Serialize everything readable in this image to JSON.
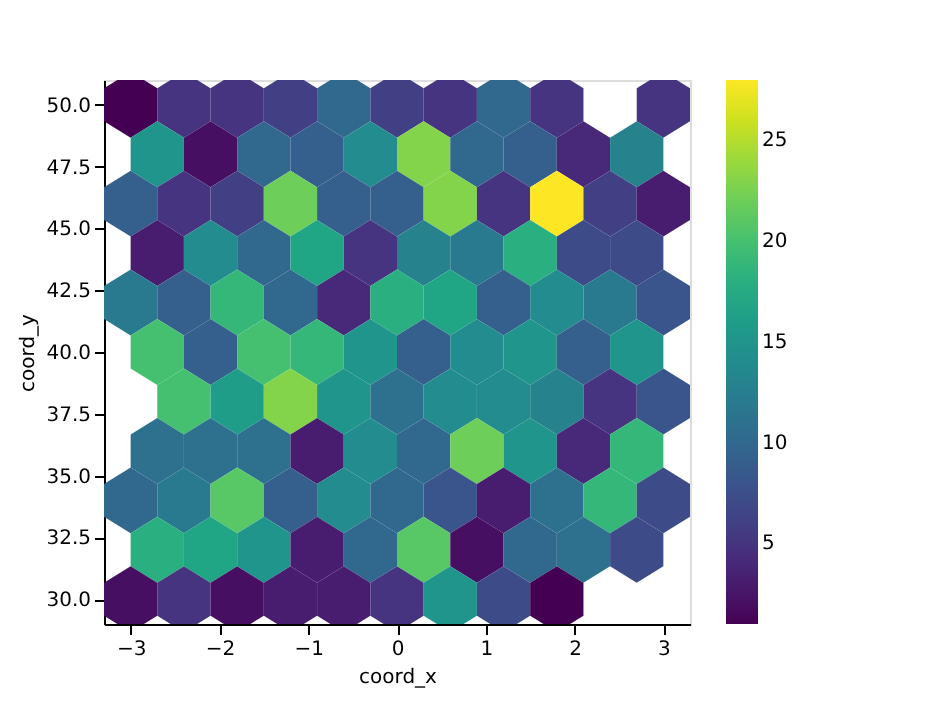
{
  "chart_data": {
    "type": "scatter",
    "xlabel": "coord_x",
    "ylabel": "coord_y",
    "x": [
      -3,
      -2.4,
      -1.8,
      -1.2,
      -0.6,
      0,
      0.6,
      1.2,
      1.8,
      3,
      -2.7,
      -2.1,
      -1.5,
      -0.9,
      -0.3,
      0.3,
      0.9,
      1.5,
      2.1,
      2.7,
      -3,
      -2.4,
      -1.8,
      -1.2,
      -0.6,
      0,
      0.6,
      1.2,
      1.8,
      2.4,
      3,
      -2.7,
      -2.1,
      -1.5,
      -0.9,
      -0.3,
      0.3,
      0.9,
      1.5,
      2.1,
      2.7,
      -3,
      -2.4,
      -1.8,
      -1.2,
      -0.6,
      0,
      0.6,
      1.2,
      1.8,
      2.4,
      3,
      -2.7,
      -2.1,
      -1.5,
      -0.9,
      -0.3,
      0.3,
      0.9,
      1.5,
      2.1,
      2.7,
      -2.4,
      -1.8,
      -1.2,
      -0.6,
      0,
      0.6,
      1.2,
      1.8,
      2.4,
      3,
      -2.7,
      -2.1,
      -1.5,
      -0.9,
      -0.3,
      0.3,
      0.9,
      1.5,
      2.1,
      2.7,
      -3,
      -2.4,
      -1.8,
      -1.2,
      -0.6,
      0,
      0.6,
      1.2,
      1.8,
      2.4,
      3,
      -2.7,
      -2.1,
      -1.5,
      -0.9,
      -0.3,
      0.3,
      0.9,
      1.5,
      2.1,
      2.7,
      -3,
      -2.4,
      -1.8,
      -1.2,
      -0.6,
      0,
      0.6,
      1.2,
      1.8
    ],
    "values": [
      50,
      50,
      50,
      50,
      50,
      50,
      50,
      50,
      50,
      50,
      48,
      48,
      48,
      48,
      48,
      48,
      48,
      48,
      48,
      48,
      46,
      46,
      46,
      46,
      46,
      46,
      46,
      46,
      46,
      46,
      46,
      44,
      44,
      44,
      44,
      44,
      44,
      44,
      44,
      44,
      44,
      42,
      42,
      42,
      42,
      42,
      42,
      42,
      42,
      42,
      42,
      42,
      40,
      40,
      40,
      40,
      40,
      40,
      40,
      40,
      40,
      40,
      38,
      38,
      38,
      38,
      38,
      38,
      38,
      38,
      38,
      38,
      36,
      36,
      36,
      36,
      36,
      36,
      36,
      36,
      36,
      36,
      34,
      34,
      34,
      34,
      34,
      34,
      34,
      34,
      34,
      34,
      34,
      32,
      32,
      32,
      32,
      32,
      32,
      32,
      32,
      32,
      32,
      30,
      30,
      30,
      30,
      30,
      30,
      30,
      30,
      30
    ],
    "cvalues": [
      1,
      5,
      5,
      6,
      10,
      6,
      5,
      10,
      5,
      5,
      15,
      2,
      10,
      9,
      14,
      23,
      10,
      9,
      4,
      13,
      9,
      5,
      6,
      22,
      9,
      9,
      23,
      5,
      28,
      6,
      3,
      3,
      14,
      10,
      17,
      5,
      13,
      12,
      18,
      7,
      7,
      12,
      9,
      19,
      10,
      4,
      18,
      17,
      9,
      14,
      12,
      8,
      20,
      9,
      20,
      19,
      15,
      9,
      14,
      15,
      9,
      15,
      20,
      16,
      23,
      15,
      11,
      14,
      14,
      13,
      5,
      8,
      11,
      11,
      11,
      3,
      14,
      10,
      22,
      15,
      4,
      19,
      10,
      12,
      21,
      9,
      14,
      10,
      8,
      3,
      11,
      19,
      7,
      18,
      17,
      15,
      3,
      10,
      21,
      2,
      10,
      11,
      7,
      2,
      5,
      2,
      3,
      3,
      5,
      15,
      7,
      1
    ],
    "xlim": [
      -3.3,
      3.3
    ],
    "ylim": [
      29,
      51
    ],
    "xticks": [
      -3,
      -2,
      -1,
      0,
      1,
      2,
      3
    ],
    "yticks": [
      {
        "value": 30,
        "label": "30.0"
      },
      {
        "value": 32.5,
        "label": "32.5"
      },
      {
        "value": 35,
        "label": "35.0"
      },
      {
        "value": 37.5,
        "label": "37.5"
      },
      {
        "value": 40,
        "label": "40.0"
      },
      {
        "value": 42.5,
        "label": "42.5"
      },
      {
        "value": 45,
        "label": "45.0"
      },
      {
        "value": 47.5,
        "label": "47.5"
      },
      {
        "value": 50,
        "label": "50.0"
      }
    ],
    "clim": [
      1,
      28
    ],
    "cticks": [
      5,
      10,
      15,
      20,
      25
    ]
  }
}
